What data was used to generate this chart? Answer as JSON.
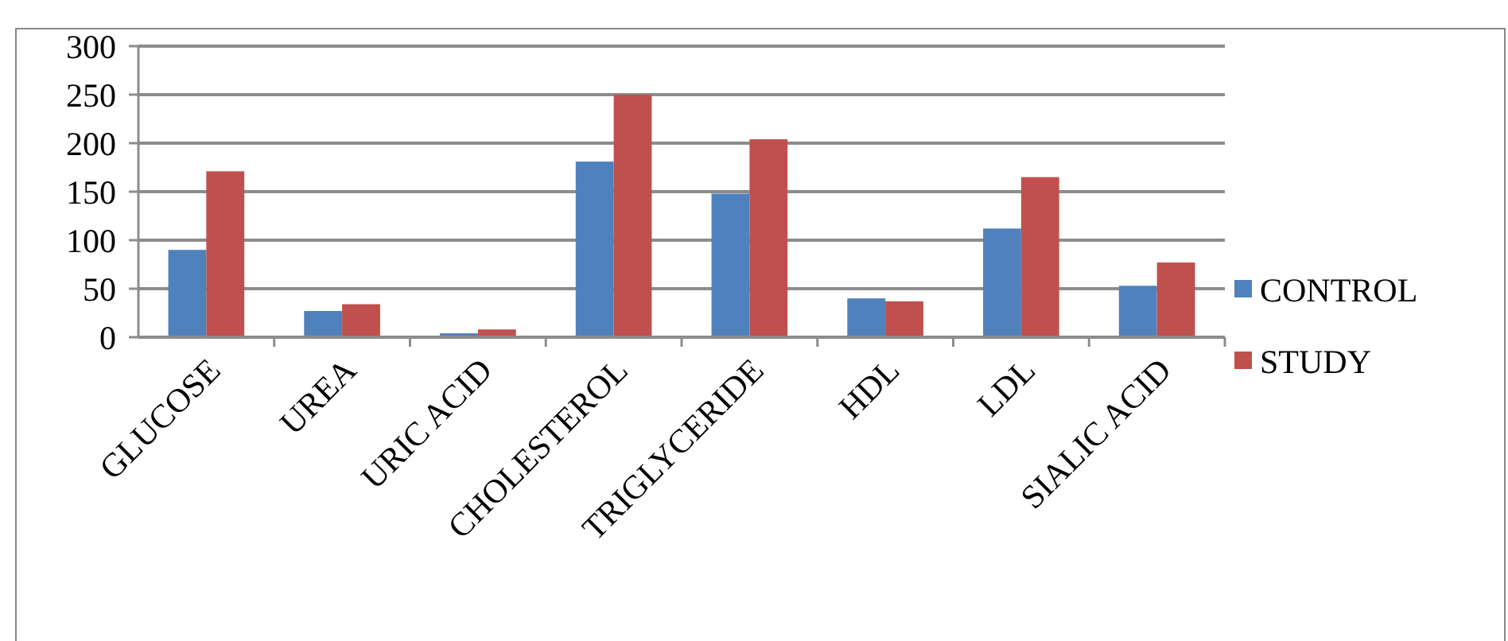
{
  "chart_data": {
    "type": "bar",
    "categories": [
      "GLUCOSE",
      "UREA",
      "URIC ACID",
      "CHOLESTEROL",
      "TRIGLYCERIDE",
      "HDL",
      "LDL",
      "SIALIC ACID"
    ],
    "series": [
      {
        "name": "CONTROL",
        "color": "#4f81bd",
        "values": [
          90,
          27,
          4,
          181,
          148,
          40,
          112,
          53
        ]
      },
      {
        "name": "STUDY",
        "color": "#c0504d",
        "values": [
          171,
          34,
          8,
          250,
          204,
          37,
          165,
          77
        ]
      }
    ],
    "ylim": [
      0,
      300
    ],
    "yticks": [
      0,
      50,
      100,
      150,
      200,
      250,
      300
    ],
    "grid": "y",
    "legend": "right"
  }
}
